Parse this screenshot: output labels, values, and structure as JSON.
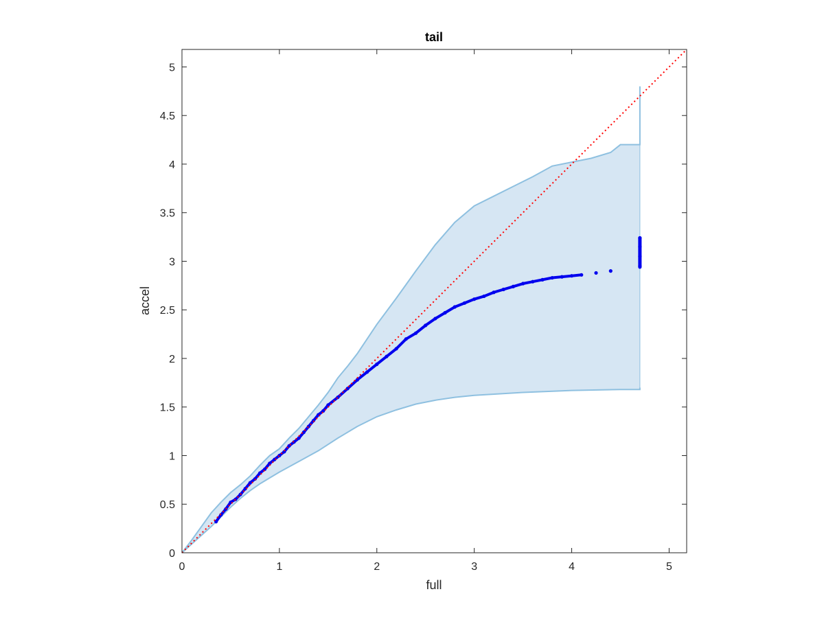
{
  "chart_data": {
    "type": "line",
    "title": "tail",
    "xlabel": "full",
    "ylabel": "accel",
    "xlim": [
      0,
      5.18
    ],
    "ylim": [
      0,
      5.18
    ],
    "xticks": [
      "0",
      "1",
      "2",
      "3",
      "4",
      "5"
    ],
    "yticks": [
      "0",
      "0.5",
      "1",
      "1.5",
      "2",
      "2.5",
      "3",
      "3.5",
      "4",
      "4.5",
      "5"
    ],
    "grid": false,
    "colors": {
      "band_fill": "#d6e6f3",
      "band_edge": "#8ec0e0",
      "median": "#0000ee",
      "reference": "#ff0000"
    },
    "series": [
      {
        "kind": "band-upper",
        "x": [
          0,
          0.1,
          0.2,
          0.3,
          0.4,
          0.5,
          0.6,
          0.7,
          0.8,
          0.9,
          1.0,
          1.1,
          1.2,
          1.3,
          1.4,
          1.5,
          1.6,
          1.7,
          1.8,
          1.9,
          2.0,
          2.2,
          2.4,
          2.6,
          2.8,
          3.0,
          3.2,
          3.4,
          3.6,
          3.8,
          4.0,
          4.2,
          4.4,
          4.5,
          4.6,
          4.7,
          4.7
        ],
        "y": [
          0,
          0.13,
          0.27,
          0.41,
          0.52,
          0.62,
          0.7,
          0.79,
          0.9,
          1.0,
          1.07,
          1.18,
          1.28,
          1.4,
          1.52,
          1.65,
          1.8,
          1.92,
          2.05,
          2.2,
          2.35,
          2.62,
          2.9,
          3.17,
          3.4,
          3.57,
          3.67,
          3.77,
          3.87,
          3.98,
          4.02,
          4.06,
          4.12,
          4.2,
          4.2,
          4.2,
          4.8
        ]
      },
      {
        "kind": "band-lower",
        "x": [
          0,
          0.1,
          0.2,
          0.3,
          0.4,
          0.5,
          0.6,
          0.7,
          0.8,
          0.9,
          1.0,
          1.2,
          1.4,
          1.6,
          1.8,
          2.0,
          2.2,
          2.4,
          2.6,
          2.8,
          3.0,
          3.5,
          4.0,
          4.5,
          4.7,
          4.7
        ],
        "y": [
          0,
          0.09,
          0.18,
          0.27,
          0.37,
          0.47,
          0.56,
          0.64,
          0.71,
          0.77,
          0.83,
          0.94,
          1.05,
          1.18,
          1.3,
          1.4,
          1.47,
          1.53,
          1.57,
          1.6,
          1.62,
          1.65,
          1.67,
          1.68,
          1.68,
          1.7
        ]
      },
      {
        "kind": "median-points",
        "x": [
          0.35,
          0.4,
          0.45,
          0.5,
          0.55,
          0.6,
          0.65,
          0.7,
          0.75,
          0.8,
          0.85,
          0.9,
          0.95,
          1.0,
          1.05,
          1.1,
          1.15,
          1.2,
          1.25,
          1.3,
          1.35,
          1.4,
          1.45,
          1.5,
          1.6,
          1.7,
          1.8,
          1.9,
          2.0,
          2.1,
          2.2,
          2.3,
          2.4,
          2.5,
          2.6,
          2.7,
          2.8,
          2.9,
          3.0,
          3.1,
          3.2,
          3.3,
          3.4,
          3.5,
          3.6,
          3.7,
          3.8,
          3.9,
          4.0,
          4.1,
          4.25,
          4.4,
          4.7,
          4.7,
          4.7,
          4.7
        ],
        "y": [
          0.32,
          0.39,
          0.45,
          0.52,
          0.55,
          0.6,
          0.66,
          0.72,
          0.76,
          0.82,
          0.86,
          0.92,
          0.96,
          1.0,
          1.04,
          1.1,
          1.14,
          1.18,
          1.24,
          1.3,
          1.36,
          1.42,
          1.46,
          1.52,
          1.6,
          1.69,
          1.78,
          1.86,
          1.94,
          2.02,
          2.1,
          2.2,
          2.26,
          2.34,
          2.41,
          2.47,
          2.53,
          2.57,
          2.61,
          2.64,
          2.68,
          2.71,
          2.74,
          2.77,
          2.79,
          2.81,
          2.83,
          2.84,
          2.85,
          2.86,
          2.88,
          2.9,
          2.95,
          3.05,
          3.15,
          3.24
        ]
      },
      {
        "kind": "reference-diagonal",
        "x": [
          0,
          5.18
        ],
        "y": [
          0,
          5.18
        ]
      }
    ]
  }
}
